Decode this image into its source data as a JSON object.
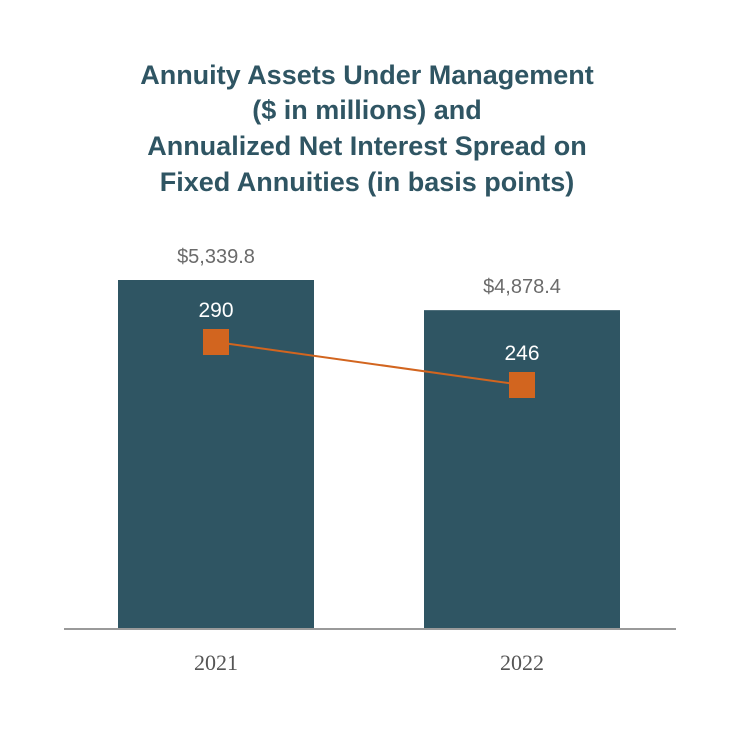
{
  "chart_data": {
    "type": "bar",
    "title_lines": [
      "Annuity Assets Under Management",
      "($ in millions) and",
      "Annualized Net Interest Spread on",
      "Fixed Annuities (in basis points)"
    ],
    "categories": [
      "2021",
      "2022"
    ],
    "series": [
      {
        "type": "bar",
        "values": [
          5339.8,
          4878.4
        ],
        "value_labels": [
          "$5,339.8",
          "$4,878.4"
        ],
        "color": "#2f5563"
      },
      {
        "type": "line",
        "values": [
          290,
          246
        ],
        "value_labels": [
          "290",
          "246"
        ],
        "color": "#d2651f",
        "marker": "square"
      }
    ],
    "ylim": [
      0,
      5339.8
    ],
    "grid": false,
    "legend": "none"
  }
}
